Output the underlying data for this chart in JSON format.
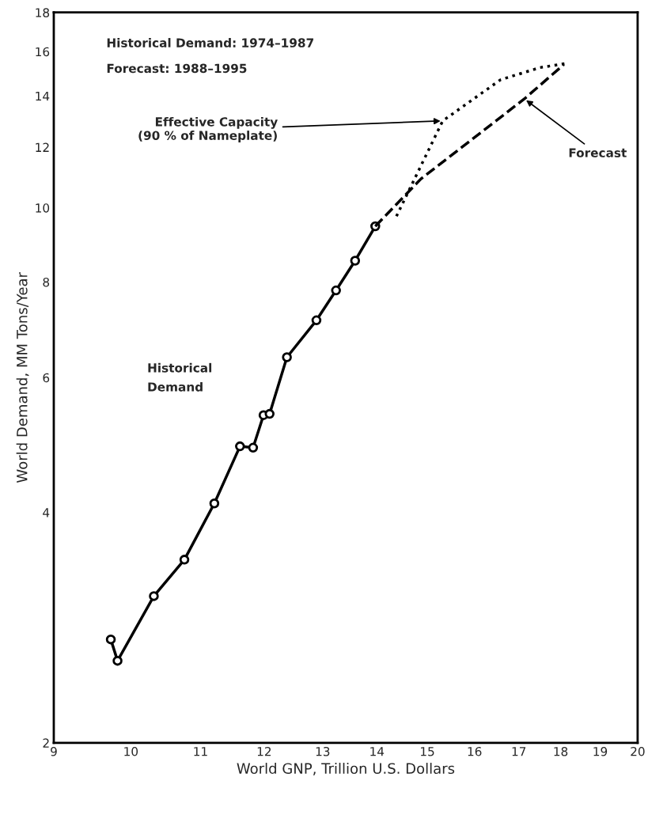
{
  "chart_data": {
    "type": "line",
    "xlabel": "World GNP, Trillion U.S. Dollars",
    "ylabel": "World Demand, MM Tons/Year",
    "log": "xy",
    "xlim": [
      9,
      20
    ],
    "ylim": [
      2,
      18
    ],
    "xticks": [
      9,
      10,
      11,
      12,
      13,
      14,
      15,
      16,
      17,
      18,
      19,
      20
    ],
    "yticks": [
      2,
      4,
      6,
      8,
      10,
      12,
      14,
      16,
      18
    ],
    "grid": false,
    "legend": false,
    "series": [
      {
        "color": "#000000",
        "marker": "circle",
        "line_style": "solid",
        "x": [
          9.73,
          9.82,
          10.32,
          10.76,
          11.21,
          11.61,
          11.82,
          11.99,
          12.09,
          12.38,
          12.89,
          13.24,
          13.59,
          13.97
        ],
        "values": [
          2.73,
          2.56,
          3.11,
          3.47,
          4.11,
          4.88,
          4.86,
          5.36,
          5.38,
          6.38,
          7.13,
          7.8,
          8.53,
          9.46
        ]
      },
      {
        "color": "#000000",
        "marker": "none",
        "line_style": "dashed",
        "x": [
          13.97,
          14.87,
          17.13,
          18.08
        ],
        "values": [
          9.46,
          10.91,
          13.88,
          15.39
        ]
      },
      {
        "color": "#000000",
        "marker": "none",
        "line_style": "dotted",
        "x": [
          14.38,
          15.32,
          16.58,
          17.5,
          18.2
        ],
        "values": [
          9.75,
          12.99,
          14.7,
          15.25,
          15.46
        ]
      }
    ],
    "annotations": [
      "Historical Demand: 1974–1987",
      "Forecast: 1988–1995",
      "Historical\nDemand",
      {
        "text": "Effective Capacity\n(90 % of Nameplate)",
        "x": 15.32,
        "y": 12.99
      },
      {
        "text": "Forecast",
        "x": 17.13,
        "y": 13.88
      }
    ]
  }
}
